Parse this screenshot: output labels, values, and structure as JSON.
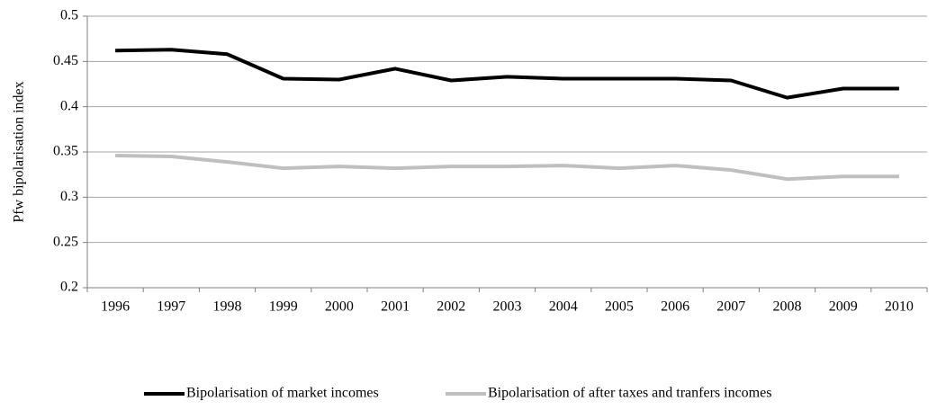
{
  "chart_data": {
    "type": "line",
    "y_label": "Pfw bipolarisation index",
    "categories": [
      "1996",
      "1997",
      "1998",
      "1999",
      "2000",
      "2001",
      "2002",
      "2003",
      "2004",
      "2005",
      "2006",
      "2007",
      "2008",
      "2009",
      "2010"
    ],
    "series": [
      {
        "name": "Bipolarisation of market incomes",
        "color": "#000000",
        "values": [
          0.462,
          0.463,
          0.458,
          0.431,
          0.43,
          0.442,
          0.429,
          0.433,
          0.431,
          0.431,
          0.431,
          0.429,
          0.41,
          0.42,
          0.42
        ]
      },
      {
        "name": "Bipolarisation of after taxes and tranfers incomes",
        "color": "#bfbfbf",
        "values": [
          0.346,
          0.345,
          0.339,
          0.332,
          0.334,
          0.332,
          0.334,
          0.334,
          0.335,
          0.332,
          0.335,
          0.33,
          0.32,
          0.323,
          0.323
        ]
      }
    ],
    "ylim": [
      0.2,
      0.5
    ],
    "yticks": [
      0.2,
      0.25,
      0.3,
      0.35,
      0.4,
      0.45,
      0.5
    ],
    "grid": true,
    "legend": "bottom"
  }
}
